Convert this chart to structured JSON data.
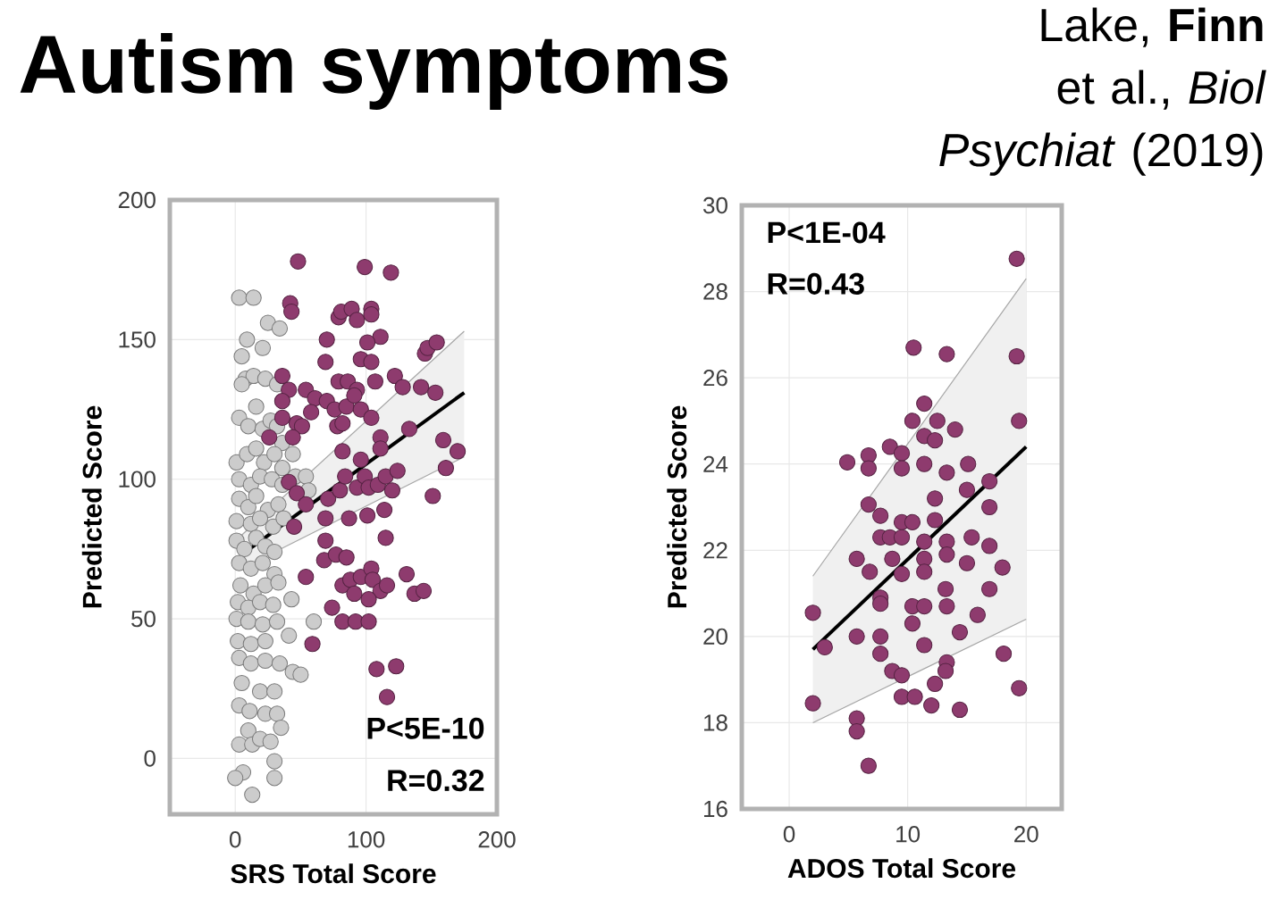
{
  "chart_data": [
    {
      "type": "scatter",
      "title": "Autism symptoms",
      "xlabel": "SRS Total Score",
      "ylabel": "Predicted Score",
      "xlim": [
        -50,
        200
      ],
      "ylim": [
        -20,
        200
      ],
      "xticks": [
        0,
        100,
        200
      ],
      "yticks": [
        0,
        50,
        100,
        150,
        200
      ],
      "grid": true,
      "annotations": [
        "P<5E-10",
        "R=0.32"
      ],
      "series": [
        {
          "color": "#cccccc",
          "marker": "circle",
          "x": [
            3,
            14,
            9,
            21,
            25,
            34,
            5,
            8,
            14,
            23,
            32,
            5,
            3,
            10,
            16,
            21,
            27,
            32,
            36,
            44,
            1,
            9,
            16,
            22,
            30,
            36,
            3,
            12,
            19,
            28,
            46,
            54,
            36,
            3,
            10,
            16,
            25,
            33,
            56,
            1,
            12,
            19,
            29,
            37,
            1,
            7,
            16,
            23,
            30,
            3,
            12,
            21,
            30,
            4,
            14,
            23,
            33,
            2,
            10,
            19,
            29,
            43,
            1,
            10,
            21,
            32,
            60,
            2,
            12,
            23,
            41,
            3,
            12,
            23,
            34,
            44,
            50,
            5,
            19,
            30,
            3,
            11,
            23,
            32,
            35,
            10,
            3,
            13,
            19,
            27,
            30,
            30,
            6,
            0,
            13
          ],
          "values": [
            165,
            165,
            150,
            147,
            156,
            154,
            144,
            136,
            137,
            136,
            134,
            134,
            122,
            119,
            126,
            118,
            121,
            119,
            113,
            109,
            106,
            109,
            111,
            106,
            109,
            104,
            100,
            98,
            101,
            100,
            101,
            101,
            98,
            93,
            90,
            94,
            89,
            91,
            96,
            85,
            84,
            86,
            83,
            86,
            78,
            75,
            79,
            76,
            74,
            70,
            68,
            70,
            66,
            62,
            59,
            62,
            63,
            56,
            54,
            56,
            55,
            57,
            50,
            49,
            48,
            49,
            49,
            42,
            41,
            42,
            44,
            36,
            34,
            35,
            34,
            31,
            30,
            27,
            24,
            24,
            19,
            17,
            16,
            16,
            11,
            10,
            5,
            5,
            7,
            6,
            -1,
            -7,
            -5,
            -7,
            -13
          ]
        },
        {
          "color": "#8e3b6e",
          "marker": "circle",
          "x": [
            48,
            99,
            119,
            42,
            43,
            79,
            81,
            89,
            93,
            104,
            104,
            111,
            101,
            70,
            69,
            96,
            104,
            36,
            79,
            86,
            93,
            107,
            122,
            128,
            142,
            153,
            145,
            147,
            154,
            41,
            54,
            61,
            70,
            76,
            85,
            91,
            96,
            104,
            36,
            36,
            47,
            51,
            58,
            26,
            44,
            78,
            82,
            111,
            133,
            159,
            170,
            161,
            111,
            41,
            47,
            54,
            71,
            80,
            82,
            84,
            93,
            96,
            99,
            102,
            109,
            115,
            120,
            124,
            151,
            69,
            87,
            101,
            114,
            45,
            69,
            68,
            77,
            85,
            115,
            82,
            88,
            96,
            104,
            105,
            111,
            116,
            102,
            91,
            74,
            82,
            92,
            102,
            131,
            137,
            144,
            54,
            59,
            108,
            123,
            116
          ],
          "values": [
            178,
            176,
            174,
            163,
            160,
            158,
            160,
            161,
            157,
            161,
            159,
            151,
            149,
            150,
            142,
            143,
            142,
            137,
            135,
            135,
            132,
            135,
            137,
            133,
            133,
            131,
            145,
            147,
            149,
            132,
            132,
            129,
            128,
            125,
            126,
            130,
            125,
            122,
            128,
            122,
            120,
            119,
            124,
            115,
            115,
            119,
            120,
            115,
            118,
            114,
            110,
            104,
            111,
            99,
            95,
            91,
            93,
            96,
            110,
            101,
            97,
            107,
            101,
            97,
            98,
            101,
            96,
            103,
            94,
            86,
            86,
            87,
            89,
            83,
            78,
            71,
            73,
            72,
            79,
            62,
            64,
            65,
            68,
            64,
            60,
            62,
            57,
            59,
            54,
            49,
            49,
            49,
            66,
            59,
            60,
            65,
            41,
            32,
            33,
            22
          ]
        },
        {
          "type": "line",
          "marker": "none",
          "color": "#000000",
          "x": [
            5,
            175
          ],
          "values": [
            73,
            131
          ],
          "lower": [
            68,
            108
          ],
          "upper": [
            80,
            153
          ]
        },
        {
          "type": "line",
          "marker": "none",
          "color": "#a6a6a6",
          "x": [
            5,
            175
          ],
          "values": [
            68,
            108
          ]
        },
        {
          "type": "line",
          "marker": "none",
          "color": "#a6a6a6",
          "x": [
            5,
            175
          ],
          "values": [
            80,
            153
          ]
        }
      ]
    },
    {
      "type": "scatter",
      "subtitle": "Lake, **Finn** et al., *Biol Psychiat* (2019)",
      "xlabel": "ADOS Total Score",
      "ylabel": "Predicted Score",
      "xlim": [
        -4,
        23
      ],
      "ylim": [
        16,
        30
      ],
      "xticks": [
        0,
        10,
        20
      ],
      "yticks": [
        16,
        18,
        20,
        22,
        24,
        26,
        28,
        30
      ],
      "grid": true,
      "annotations": [
        "P<1E-04",
        "R=0.43"
      ],
      "series": [
        {
          "color": "#8e3b6e",
          "marker": "circle",
          "x": [
            2,
            2,
            3,
            4.9,
            5.7,
            5.7,
            5.7,
            5.7,
            6.7,
            6.7,
            6.7,
            6.8,
            6.7,
            7.7,
            7.7,
            7.7,
            7.7,
            7.7,
            7.7,
            8.5,
            8.5,
            8.7,
            8.7,
            9.5,
            9.5,
            9.5,
            9.5,
            9.5,
            9.5,
            9.5,
            10.5,
            10.4,
            10.4,
            10.4,
            10.4,
            10.6,
            11.4,
            11.4,
            11.4,
            11.4,
            11.4,
            11.4,
            11.4,
            11.4,
            12.3,
            12.3,
            12.3,
            12.3,
            13.3,
            13.3,
            13.3,
            13.3,
            13.3,
            13.3,
            19.2,
            19.2,
            19.4,
            15.1,
            15,
            15.4,
            16.9,
            15,
            13.2,
            16.9,
            15.9,
            14.4,
            18.1,
            19.4,
            12,
            14.4,
            16.9,
            16.9,
            12.5,
            14,
            18,
            13.2
          ],
          "values": [
            20.55,
            18.45,
            19.75,
            24.04,
            21.8,
            20.0,
            18.1,
            17.8,
            24.2,
            23.9,
            23.06,
            21.5,
            17.0,
            22.8,
            22.3,
            20.9,
            20.76,
            20.0,
            19.6,
            24.4,
            22.3,
            21.8,
            19.2,
            24.25,
            23.9,
            22.65,
            22.3,
            21.45,
            19.1,
            18.6,
            26.7,
            25.0,
            22.65,
            20.7,
            20.3,
            18.6,
            25.4,
            24.65,
            24.0,
            22.2,
            21.8,
            21.5,
            20.7,
            19.8,
            24.55,
            23.2,
            22.7,
            18.9,
            26.55,
            23.8,
            22.2,
            21.9,
            20.7,
            19.4,
            28.76,
            26.5,
            25.0,
            24.0,
            23.4,
            22.3,
            22.1,
            21.7,
            21.1,
            21.1,
            20.5,
            20.1,
            19.6,
            18.8,
            18.4,
            18.3,
            23.6,
            23.0,
            25.0,
            24.8,
            21.6,
            19.2
          ]
        },
        {
          "type": "line",
          "marker": "none",
          "color": "#000000",
          "x": [
            2,
            20
          ],
          "values": [
            19.7,
            24.4
          ],
          "lower": [
            18.0,
            20.4
          ],
          "upper": [
            21.4,
            28.3
          ]
        },
        {
          "type": "line",
          "marker": "none",
          "color": "#a6a6a6",
          "x": [
            2,
            20
          ],
          "values": [
            18.0,
            20.4
          ]
        },
        {
          "type": "line",
          "marker": "none",
          "color": "#a6a6a6",
          "x": [
            2,
            20
          ],
          "values": [
            21.4,
            28.3
          ]
        }
      ]
    }
  ]
}
